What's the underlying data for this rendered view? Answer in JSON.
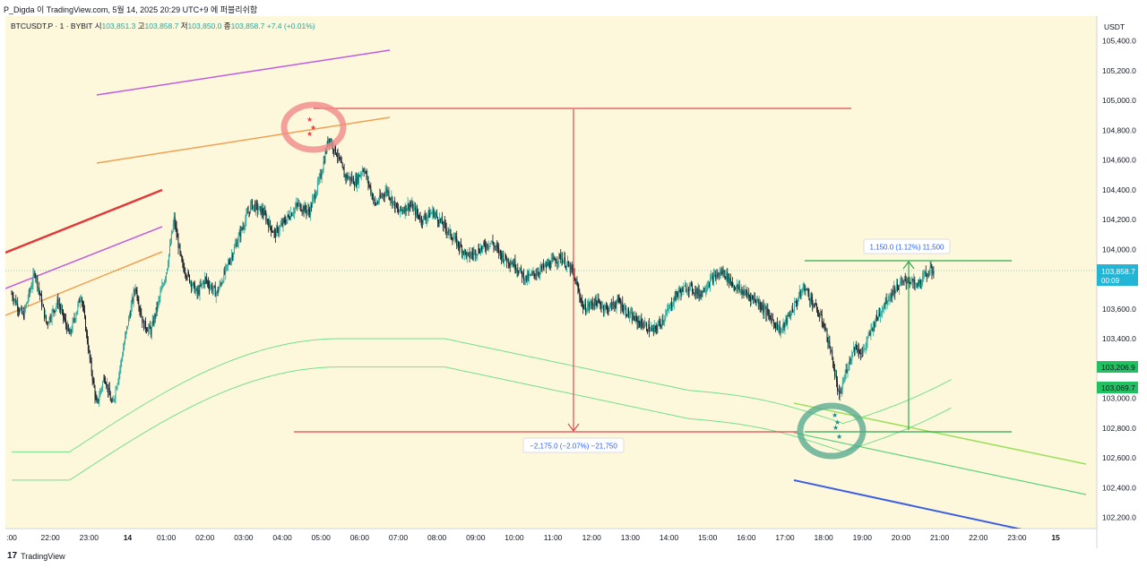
{
  "header": {
    "caption": "P_Digda 이 TradingView.com, 5월 14, 2025 20:29 UTC+9 에 퍼블리쉬함"
  },
  "footer": {
    "logo": "17",
    "brand": "TradingView"
  },
  "legend": {
    "symbol": "BTCUSDT.P · 1 · BYBIT",
    "open_label": "시",
    "open": "103,851.3",
    "high_label": "고",
    "high": "103,858.7",
    "low_label": "저",
    "low": "103,850.0",
    "close_label": "종",
    "close": "103,858.7",
    "change": "+7.4 (+0.01%)"
  },
  "colors": {
    "bg": "#fdf8dc",
    "up": "#26a69a",
    "down": "#ef5350",
    "candle": "#131722",
    "measure_down": "#e0494e",
    "measure_up": "#2fa84f",
    "purple": "#c05ce0",
    "orange": "#f0a050",
    "red": "#e03a3a",
    "green_band": "#74e08a",
    "lime": "#9be05a",
    "blue": "#3b5fe0",
    "price_tag": "#22b5d6",
    "label_green": "#21c162"
  },
  "chart_data": {
    "type": "candlestick",
    "title": "BTCUSDT.P · 1 · BYBIT",
    "currency_label": "USDT",
    "ylim": [
      102100,
      105500
    ],
    "y_ticks": [
      "105,400.0",
      "105,200.0",
      "105,000.0",
      "104,800.0",
      "104,600.0",
      "104,400.0",
      "104,200.0",
      "104,000.0",
      "103,800.0",
      "103,600.0",
      "103,400.0",
      "103,200.0",
      "103,000.0",
      "102,800.0",
      "102,600.0",
      "102,400.0",
      "102,200.0"
    ],
    "y_tick_values": [
      105400,
      105200,
      105000,
      104800,
      104600,
      104400,
      104200,
      104000,
      103800,
      103600,
      103400,
      103200,
      103000,
      102800,
      102600,
      102400,
      102200
    ],
    "x_ticks": [
      ":00",
      "22:00",
      "23:00",
      "14",
      "01:00",
      "02:00",
      "03:00",
      "04:00",
      "05:00",
      "06:00",
      "07:00",
      "08:00",
      "09:00",
      "10:00",
      "11:00",
      "12:00",
      "13:00",
      "14:00",
      "15:00",
      "16:00",
      "17:00",
      "18:00",
      "19:00",
      "20:00",
      "21:00",
      "22:00",
      "23:00",
      "15"
    ],
    "x_tick_hours": [
      20,
      21,
      22,
      23,
      24,
      25,
      26,
      27,
      28,
      29,
      30,
      31,
      32,
      33,
      34,
      35,
      36,
      37,
      38,
      39,
      40,
      41,
      42,
      43,
      44,
      45,
      46,
      47
    ],
    "price_path": [
      [
        20.0,
        103700
      ],
      [
        20.3,
        103550
      ],
      [
        20.6,
        103850
      ],
      [
        20.9,
        103500
      ],
      [
        21.2,
        103650
      ],
      [
        21.5,
        103420
      ],
      [
        21.8,
        103700
      ],
      [
        22.0,
        103300
      ],
      [
        22.2,
        102950
      ],
      [
        22.4,
        103150
      ],
      [
        22.6,
        102950
      ],
      [
        22.8,
        103200
      ],
      [
        23.0,
        103500
      ],
      [
        23.2,
        103750
      ],
      [
        23.4,
        103500
      ],
      [
        23.6,
        103450
      ],
      [
        23.8,
        103650
      ],
      [
        24.0,
        103850
      ],
      [
        24.2,
        104200
      ],
      [
        24.4,
        103900
      ],
      [
        24.6,
        103800
      ],
      [
        24.8,
        103700
      ],
      [
        25.0,
        103800
      ],
      [
        25.3,
        103700
      ],
      [
        25.6,
        103900
      ],
      [
        25.9,
        104100
      ],
      [
        26.2,
        104300
      ],
      [
        26.5,
        104250
      ],
      [
        26.8,
        104100
      ],
      [
        27.1,
        104200
      ],
      [
        27.4,
        104300
      ],
      [
        27.7,
        104250
      ],
      [
        28.0,
        104500
      ],
      [
        28.2,
        104750
      ],
      [
        28.4,
        104650
      ],
      [
        28.6,
        104500
      ],
      [
        28.9,
        104450
      ],
      [
        29.1,
        104550
      ],
      [
        29.4,
        104300
      ],
      [
        29.7,
        104400
      ],
      [
        30.0,
        104250
      ],
      [
        30.3,
        104300
      ],
      [
        30.6,
        104200
      ],
      [
        30.9,
        104250
      ],
      [
        31.2,
        104150
      ],
      [
        31.5,
        104050
      ],
      [
        31.8,
        103950
      ],
      [
        32.1,
        104000
      ],
      [
        32.4,
        104050
      ],
      [
        32.7,
        103950
      ],
      [
        33.0,
        103900
      ],
      [
        33.3,
        103800
      ],
      [
        33.6,
        103850
      ],
      [
        33.9,
        103900
      ],
      [
        34.2,
        103950
      ],
      [
        34.5,
        103850
      ],
      [
        34.8,
        103600
      ],
      [
        35.1,
        103650
      ],
      [
        35.4,
        103600
      ],
      [
        35.7,
        103650
      ],
      [
        36.0,
        103550
      ],
      [
        36.3,
        103500
      ],
      [
        36.6,
        103450
      ],
      [
        36.9,
        103550
      ],
      [
        37.2,
        103700
      ],
      [
        37.5,
        103750
      ],
      [
        37.8,
        103700
      ],
      [
        38.1,
        103800
      ],
      [
        38.4,
        103850
      ],
      [
        38.7,
        103750
      ],
      [
        39.0,
        103700
      ],
      [
        39.3,
        103650
      ],
      [
        39.6,
        103550
      ],
      [
        39.9,
        103450
      ],
      [
        40.2,
        103600
      ],
      [
        40.5,
        103750
      ],
      [
        40.8,
        103600
      ],
      [
        41.0,
        103500
      ],
      [
        41.2,
        103300
      ],
      [
        41.4,
        103000
      ],
      [
        41.6,
        103200
      ],
      [
        41.8,
        103350
      ],
      [
        42.0,
        103300
      ],
      [
        42.3,
        103500
      ],
      [
        42.6,
        103650
      ],
      [
        42.9,
        103750
      ],
      [
        43.2,
        103800
      ],
      [
        43.4,
        103750
      ],
      [
        43.7,
        103850
      ],
      [
        43.85,
        103860
      ]
    ],
    "annotations": [
      {
        "text": "−2,175.0 (−2.07%) −21,750"
      },
      {
        "text": "1,150.0 (1.12%) 11,500"
      }
    ],
    "last_price": "103,858.7",
    "countdown": "00:09",
    "band_upper_label": "103,206.9",
    "band_lower_label": "103,069.7"
  }
}
